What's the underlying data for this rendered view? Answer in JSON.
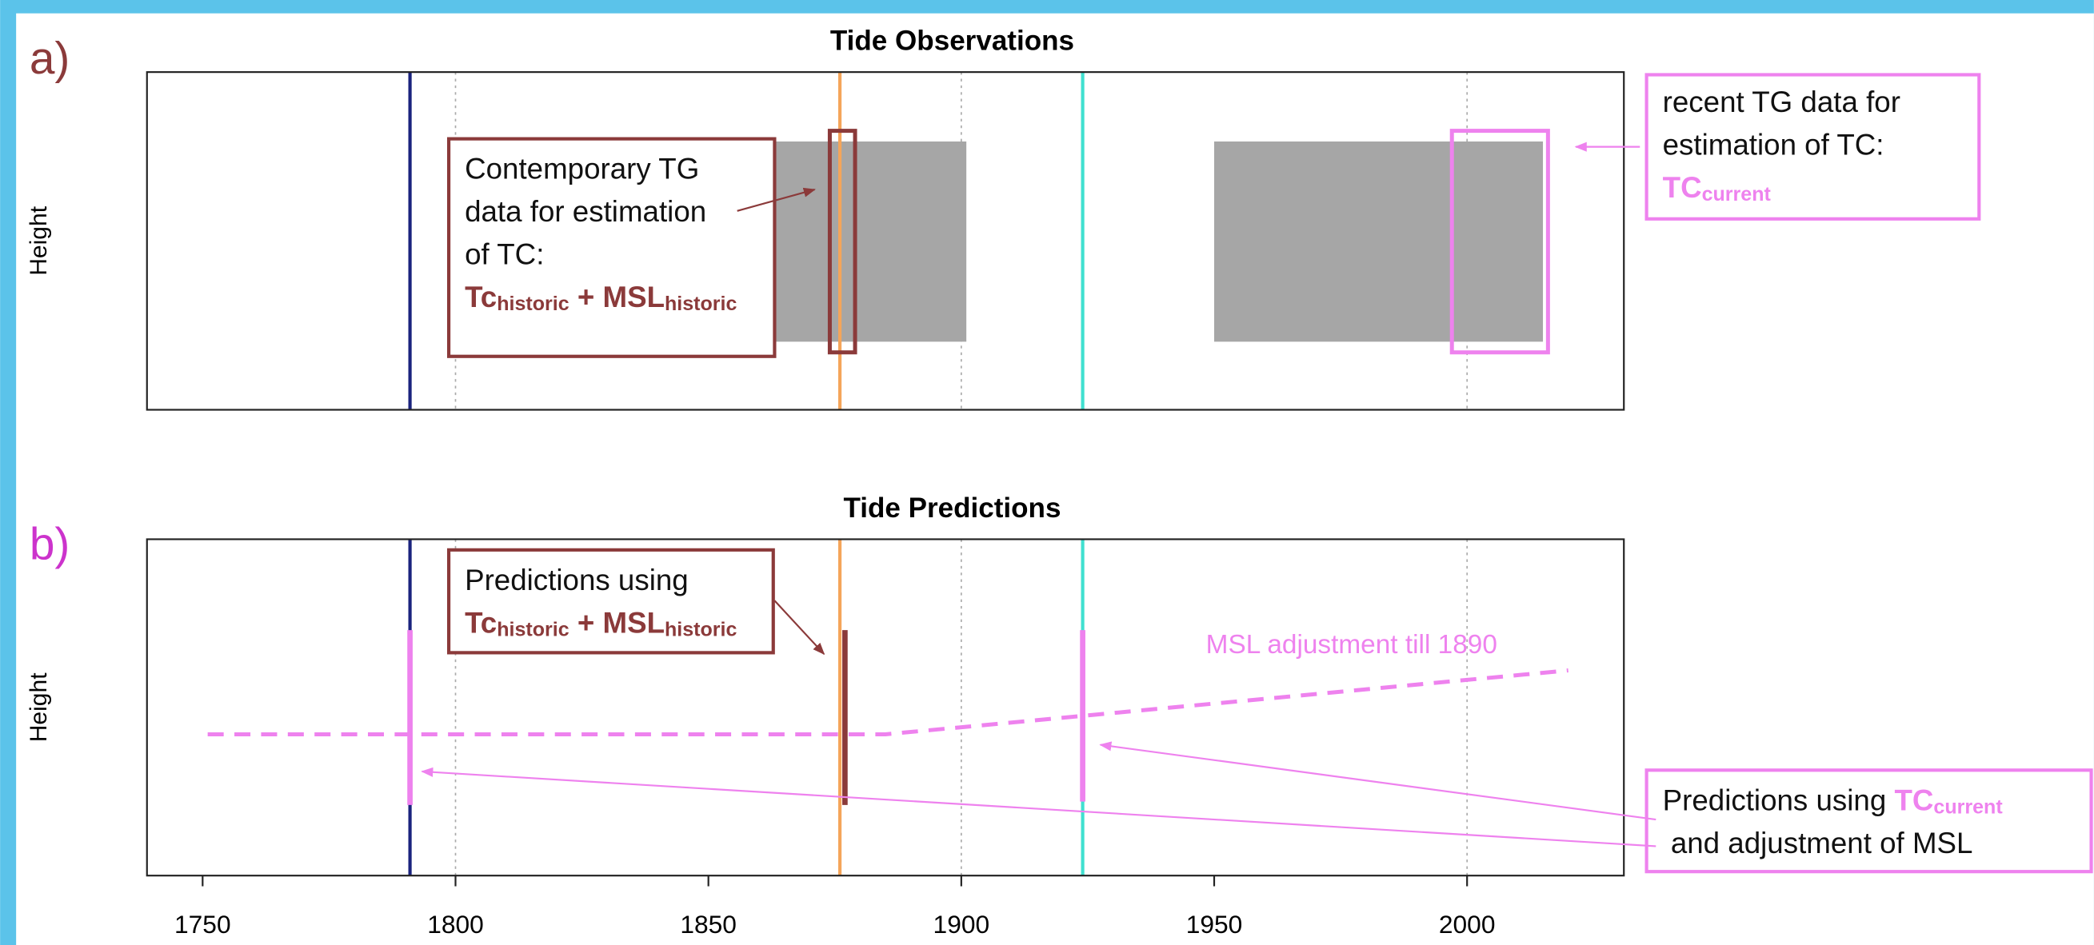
{
  "chart_data": [
    {
      "type": "spans",
      "panel_label": "a)",
      "panel_label_color": "#8b3a3a",
      "title": "Tide Observations",
      "ylabel": "Height",
      "xlim": [
        1739,
        2031
      ],
      "grid_x": [
        1800,
        1900,
        2000
      ],
      "vlines": [
        {
          "x": 1791,
          "color": "#1a237e"
        },
        {
          "x": 1876,
          "color": "#f5a55a"
        },
        {
          "x": 1924,
          "color": "#40e0d0"
        }
      ],
      "observation_spans": {
        "color": "#a6a6a6",
        "x": [
          [
            1863,
            1901
          ],
          [
            1950,
            2015
          ]
        ]
      },
      "highlight_boxes": [
        {
          "x": [
            1874,
            1879
          ],
          "color": "#8b3a3a"
        },
        {
          "x": [
            1997,
            2016
          ],
          "color": "#ee82ee"
        }
      ],
      "annotations": [
        {
          "color": "#8b3a3a",
          "lines": [
            [
              {
                "text": "Contemporary TG"
              }
            ],
            [
              {
                "text": "data for estimation"
              }
            ],
            [
              {
                "text": "of TC:"
              }
            ],
            [
              {
                "text": "Tc",
                "bold": true,
                "color": "#8b3a3a"
              },
              {
                "text": "historic",
                "sub": true,
                "bold": true,
                "color": "#8b3a3a"
              },
              {
                "text": " + MSL",
                "bold": true,
                "color": "#8b3a3a"
              },
              {
                "text": "historic",
                "sub": true,
                "bold": true,
                "color": "#8b3a3a"
              }
            ]
          ]
        },
        {
          "color": "#ee82ee",
          "lines": [
            [
              {
                "text": "recent TG data for"
              }
            ],
            [
              {
                "text": "estimation of TC:"
              }
            ],
            [
              {
                "text": "TC",
                "bold": true,
                "color": "#ee82ee"
              },
              {
                "text": "current",
                "sub": true,
                "bold": true,
                "color": "#ee82ee"
              }
            ]
          ]
        }
      ]
    },
    {
      "type": "line",
      "panel_label": "b)",
      "panel_label_color": "#cc33cc",
      "title": "Tide Predictions",
      "ylabel": "Height",
      "xlim": [
        1739,
        2031
      ],
      "xticks": [
        1750,
        1800,
        1850,
        1900,
        1950,
        2000
      ],
      "grid_x": [
        1800,
        1900,
        2000
      ],
      "ylim": [
        0,
        1
      ],
      "vlines": [
        {
          "x": 1791,
          "color": "#1a237e"
        },
        {
          "x": 1876,
          "color": "#f5a55a"
        },
        {
          "x": 1924,
          "color": "#40e0d0"
        }
      ],
      "series": [
        {
          "color": "#ee82ee",
          "dashed": true,
          "x": [
            1751,
            1885,
            2020
          ],
          "values": [
            0.42,
            0.42,
            0.61
          ]
        }
      ],
      "vbars": [
        {
          "x": 1791,
          "y": [
            0.21,
            0.73
          ],
          "color": "#ee82ee"
        },
        {
          "x": 1877,
          "y": [
            0.21,
            0.73
          ],
          "color": "#8b3a3a"
        },
        {
          "x": 1924,
          "y": [
            0.22,
            0.73
          ],
          "color": "#ee82ee"
        }
      ],
      "line_annotation": {
        "text": "MSL adjustment till 1890",
        "color": "#ee82ee"
      },
      "annotations": [
        {
          "color": "#8b3a3a",
          "lines": [
            [
              {
                "text": "Predictions using"
              }
            ],
            [
              {
                "text": "Tc",
                "bold": true,
                "color": "#8b3a3a"
              },
              {
                "text": "historic",
                "sub": true,
                "bold": true,
                "color": "#8b3a3a"
              },
              {
                "text": " + MSL",
                "bold": true,
                "color": "#8b3a3a"
              },
              {
                "text": "historic",
                "sub": true,
                "bold": true,
                "color": "#8b3a3a"
              }
            ]
          ]
        },
        {
          "color": "#ee82ee",
          "lines": [
            [
              {
                "text": "Predictions using "
              },
              {
                "text": "TC",
                "bold": true,
                "color": "#ee82ee"
              },
              {
                "text": "current",
                "sub": true,
                "bold": true,
                "color": "#ee82ee"
              }
            ],
            [
              {
                "text": " and adjustment of MSL"
              }
            ]
          ]
        }
      ]
    }
  ]
}
